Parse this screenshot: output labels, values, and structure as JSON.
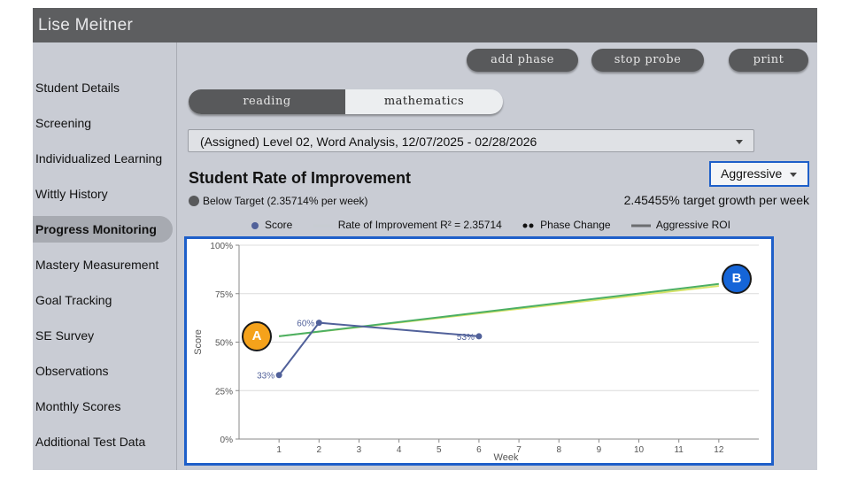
{
  "app": {
    "title": "Lise Meitner"
  },
  "sidebar": {
    "items": [
      {
        "label": "Student Details",
        "active": false
      },
      {
        "label": "Screening",
        "active": false
      },
      {
        "label": "Individualized Learning",
        "active": false
      },
      {
        "label": "Wittly History",
        "active": false
      },
      {
        "label": "Progress Monitoring",
        "active": true
      },
      {
        "label": "Mastery Measurement",
        "active": false
      },
      {
        "label": "Goal Tracking",
        "active": false
      },
      {
        "label": "SE Survey",
        "active": false
      },
      {
        "label": "Observations",
        "active": false
      },
      {
        "label": "Monthly Scores",
        "active": false
      },
      {
        "label": "Additional Test Data",
        "active": false
      }
    ]
  },
  "toolbar": {
    "add_phase": "add phase",
    "stop_probe": "stop probe",
    "print": "print"
  },
  "subject_tabs": {
    "reading": "reading",
    "mathematics": "mathematics",
    "selected": "reading"
  },
  "assessment_select": {
    "value": "(Assigned) Level 02, Word Analysis, 12/07/2025 - 02/28/2026"
  },
  "section": {
    "title": "Student Rate of Improvement",
    "status": "Below Target (2.35714% per week)",
    "target_growth": "2.45455% target growth per week",
    "roi_dropdown": "Aggressive"
  },
  "legend": {
    "score": "Score",
    "roi": "Rate of Improvement R² = 2.35714",
    "phase_change": "Phase Change",
    "aggressive": "Aggressive ROI"
  },
  "markers": {
    "a": "A",
    "b": "B"
  },
  "colors": {
    "score": "#51619a",
    "roi": "#d7e36a",
    "aggressive": "#4caf64",
    "marker_a": "#f5a21b",
    "marker_b": "#1565d8",
    "accent_border": "#1e5fc9"
  },
  "chart_data": {
    "type": "line",
    "xlabel": "Week",
    "ylabel": "Score",
    "x_ticks": [
      1,
      2,
      3,
      4,
      5,
      6,
      7,
      8,
      9,
      10,
      11,
      12
    ],
    "y_ticks": [
      "0%",
      "25%",
      "50%",
      "75%",
      "100%"
    ],
    "xlim": [
      0,
      13
    ],
    "ylim": [
      0,
      100
    ],
    "grid": "horizontal",
    "series": [
      {
        "name": "Score",
        "x": [
          1,
          2,
          6
        ],
        "y": [
          33,
          60,
          53
        ],
        "labels": [
          "33%",
          "60%",
          "53%"
        ]
      },
      {
        "name": "Rate of Improvement R² = 2.35714",
        "x": [
          1,
          12
        ],
        "y": [
          53,
          79
        ]
      },
      {
        "name": "Aggressive ROI",
        "x": [
          1,
          12
        ],
        "y": [
          53,
          80
        ]
      }
    ]
  }
}
